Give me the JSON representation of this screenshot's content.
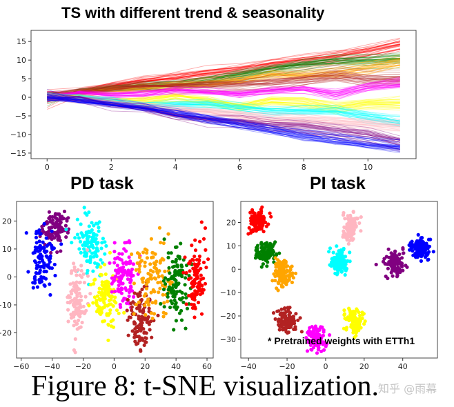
{
  "chart_data": [
    {
      "type": "line",
      "title": "TS with different trend & seasonality",
      "xlim": [
        -0.5,
        11.5
      ],
      "ylim": [
        -16.5,
        18
      ],
      "xticks": [
        0,
        2,
        4,
        6,
        8,
        10
      ],
      "yticks": [
        -15,
        -10,
        -5,
        0,
        5,
        10,
        15
      ],
      "x": [
        0,
        1,
        2,
        3,
        4,
        5,
        6,
        7,
        8,
        9,
        10,
        11
      ],
      "grid": false,
      "series": [
        {
          "color": "#ff0000",
          "values": [
            0,
            1.5,
            3,
            4.5,
            5.5,
            6.5,
            7.5,
            9,
            10,
            11,
            12.5,
            14.5
          ]
        },
        {
          "color": "#008000",
          "values": [
            0,
            1.5,
            2.5,
            3,
            3.5,
            4.5,
            6,
            7.5,
            9,
            10,
            10,
            10.5
          ]
        },
        {
          "color": "#ffa500",
          "values": [
            0,
            1,
            2,
            2.5,
            3,
            3.5,
            4.5,
            6,
            6,
            6.5,
            8,
            9.5
          ]
        },
        {
          "color": "#b22222",
          "values": [
            0,
            1.5,
            2.5,
            3,
            3,
            3.5,
            3.5,
            4,
            5,
            6,
            5,
            5
          ]
        },
        {
          "color": "#ff00ff",
          "values": [
            0,
            1.2,
            0.8,
            1,
            2,
            1.5,
            1,
            2,
            2.5,
            1,
            3,
            4
          ]
        },
        {
          "color": "#ffff00",
          "values": [
            0,
            0,
            -1,
            -1,
            0,
            -1,
            -2.5,
            -1,
            -1.5,
            -3,
            -2,
            -2
          ]
        },
        {
          "color": "#00ffff",
          "values": [
            0,
            0,
            -1,
            -2.5,
            -2,
            -2,
            -3,
            -4,
            -4,
            -4,
            -5.5,
            -7
          ]
        },
        {
          "color": "#ffb6c1",
          "values": [
            0,
            -0.5,
            -1.5,
            -2.5,
            -3.5,
            -4,
            -5,
            -6,
            -6.5,
            -7,
            -7.5,
            -8
          ]
        },
        {
          "color": "#800080",
          "values": [
            0,
            -0.5,
            -2,
            -3,
            -5,
            -6,
            -6.5,
            -7.5,
            -8,
            -9,
            -10,
            -12
          ]
        },
        {
          "color": "#0000ff",
          "values": [
            0,
            -1,
            -2,
            -3,
            -4.5,
            -6,
            -7.5,
            -9,
            -10.5,
            -11.5,
            -12.5,
            -13.5
          ]
        }
      ]
    },
    {
      "type": "scatter",
      "title": "PD task",
      "xlim": [
        -63,
        64
      ],
      "ylim": [
        -29,
        27
      ],
      "xticks": [
        -60,
        -40,
        -20,
        0,
        20,
        40,
        60
      ],
      "yticks": [
        -20,
        -10,
        0,
        10,
        20
      ],
      "grid": false,
      "clusters": [
        {
          "color": "#800080",
          "center": [
            -38,
            18
          ],
          "std": [
            4,
            3.5
          ]
        },
        {
          "color": "#0000ff",
          "center": [
            -46,
            6
          ],
          "std": [
            4,
            5
          ]
        },
        {
          "color": "#00ffff",
          "center": [
            -15,
            11
          ],
          "std": [
            5,
            5
          ]
        },
        {
          "color": "#ffb6c1",
          "center": [
            -24,
            -8
          ],
          "std": [
            3,
            6
          ]
        },
        {
          "color": "#ffff00",
          "center": [
            -6,
            -7
          ],
          "std": [
            4,
            5
          ]
        },
        {
          "color": "#ff00ff",
          "center": [
            6,
            0
          ],
          "std": [
            4,
            6
          ]
        },
        {
          "color": "#b22222",
          "center": [
            18,
            -15
          ],
          "std": [
            4,
            6
          ]
        },
        {
          "color": "#ffa500",
          "center": [
            25,
            -1
          ],
          "std": [
            6,
            7
          ]
        },
        {
          "color": "#008000",
          "center": [
            40,
            -3
          ],
          "std": [
            4,
            6
          ]
        },
        {
          "color": "#ff0000",
          "center": [
            53,
            0
          ],
          "std": [
            3,
            6
          ]
        }
      ]
    },
    {
      "type": "scatter",
      "title": "PI task",
      "xlim": [
        -44,
        58
      ],
      "ylim": [
        -38,
        29
      ],
      "xticks": [
        -40,
        -20,
        0,
        20,
        40
      ],
      "yticks": [
        -30,
        -20,
        -10,
        0,
        10,
        20
      ],
      "grid": false,
      "clusters": [
        {
          "color": "#ff0000",
          "center": [
            -35,
            21
          ],
          "std": [
            2.3,
            2.5
          ]
        },
        {
          "color": "#008000",
          "center": [
            -31,
            7
          ],
          "std": [
            2.5,
            2.5
          ]
        },
        {
          "color": "#ffa500",
          "center": [
            -22,
            -2
          ],
          "std": [
            2.3,
            2.8
          ]
        },
        {
          "color": "#b22222",
          "center": [
            -20,
            -22
          ],
          "std": [
            2.5,
            2.5
          ]
        },
        {
          "color": "#ff00ff",
          "center": [
            -5,
            -30
          ],
          "std": [
            2.3,
            2.5
          ]
        },
        {
          "color": "#ffff00",
          "center": [
            15,
            -22
          ],
          "std": [
            2.3,
            2.5
          ]
        },
        {
          "color": "#00ffff",
          "center": [
            7,
            3
          ],
          "std": [
            2.3,
            2.5
          ]
        },
        {
          "color": "#ffb6c1",
          "center": [
            13,
            18
          ],
          "std": [
            2,
            3
          ]
        },
        {
          "color": "#800080",
          "center": [
            36,
            3
          ],
          "std": [
            2.3,
            2.5
          ]
        },
        {
          "color": "#0000ff",
          "center": [
            49,
            9
          ],
          "std": [
            2.5,
            2.3
          ]
        }
      ]
    }
  ],
  "footnote": "* Pretrained weights with ETTh1",
  "caption": "Figure 8: t-SNE visualization.",
  "watermark": "知乎 @雨幕"
}
